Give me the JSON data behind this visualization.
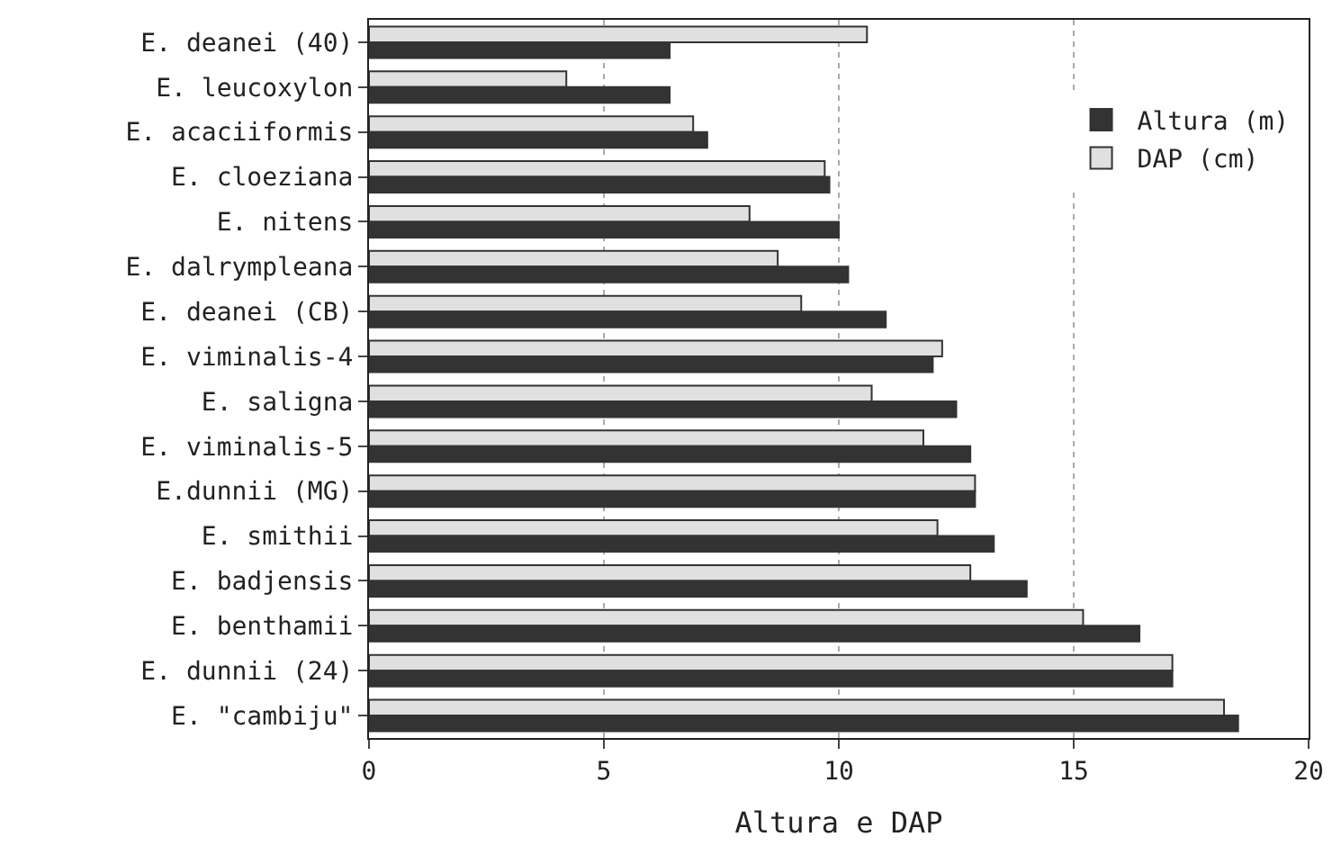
{
  "chart_data": {
    "type": "bar",
    "orientation": "horizontal",
    "xlabel": "Altura e DAP",
    "categories": [
      "E. deanei (40)",
      "E. leucoxylon",
      "E. acaciiformis",
      "E. cloeziana",
      "E. nitens",
      "E. dalrympleana",
      "E. deanei (CB)",
      "E. viminalis-4",
      "E. saligna",
      "E. viminalis-5",
      "E.dunnii (MG)",
      "E. smithii",
      "E. badjensis",
      "E. benthamii",
      "E. dunnii (24)",
      "E. \"cambiju\""
    ],
    "series": [
      {
        "name": "DAP (cm)",
        "color": "#e0e0e0",
        "values": [
          10.6,
          4.2,
          6.9,
          9.7,
          8.1,
          8.7,
          9.2,
          12.2,
          10.7,
          11.8,
          12.9,
          12.1,
          12.8,
          15.2,
          17.1,
          18.2
        ]
      },
      {
        "name": "Altura (m)",
        "color": "#333333",
        "values": [
          6.4,
          6.4,
          7.2,
          9.8,
          10.0,
          10.2,
          11.0,
          12.0,
          12.5,
          12.8,
          12.9,
          13.3,
          14.0,
          16.4,
          17.1,
          18.5
        ]
      }
    ],
    "xlim": [
      0,
      20
    ],
    "xticks": [
      0,
      5,
      10,
      15,
      20
    ],
    "grid": "x",
    "legend": "top right"
  }
}
